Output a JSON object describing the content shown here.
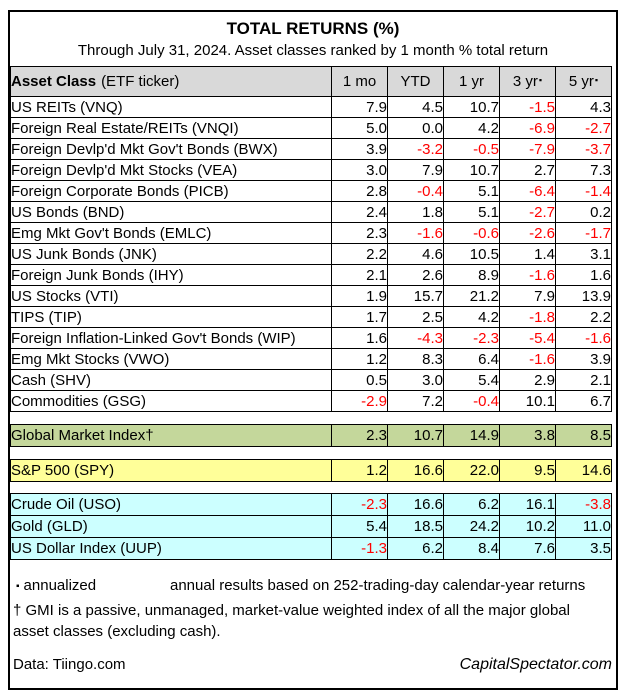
{
  "title": "TOTAL RETURNS (%)",
  "subtitle": "Through July 31, 2024. Asset classes ranked by 1 month % total return",
  "colors": {
    "header_gray": "#d9d9d9",
    "gmi_green": "#c4d79b",
    "sp_yellow": "#ffff99",
    "alt_cyan": "#ccffff",
    "negative_red": "#ff0000"
  },
  "header": {
    "asset_class_bold": "Asset Class",
    "asset_class_normal": "(ETF ticker)"
  },
  "chart_data": {
    "type": "table",
    "title": "TOTAL RETURNS (%)",
    "subtitle": "Through July 31, 2024. Asset classes ranked by 1 month % total return",
    "columns": [
      "Asset Class (ETF ticker)",
      "1 mo",
      "YTD",
      "1 yr",
      "3 yr",
      "5 yr"
    ],
    "annualized_columns": [
      "3 yr",
      "5 yr"
    ],
    "rows": [
      {
        "name": "US REITs (VNQ)",
        "values": [
          "7.9",
          "4.5",
          "10.7",
          "-1.5",
          "4.3"
        ]
      },
      {
        "name": "Foreign Real Estate/REITs (VNQI)",
        "values": [
          "5.0",
          "0.0",
          "4.2",
          "-6.9",
          "-2.7"
        ]
      },
      {
        "name": "Foreign Devlp'd Mkt Gov't Bonds (BWX)",
        "values": [
          "3.9",
          "-3.2",
          "-0.5",
          "-7.9",
          "-3.7"
        ]
      },
      {
        "name": "Foreign Devlp'd Mkt Stocks (VEA)",
        "values": [
          "3.0",
          "7.9",
          "10.7",
          "2.7",
          "7.3"
        ]
      },
      {
        "name": "Foreign Corporate Bonds (PICB)",
        "values": [
          "2.8",
          "-0.4",
          "5.1",
          "-6.4",
          "-1.4"
        ]
      },
      {
        "name": "US Bonds (BND)",
        "values": [
          "2.4",
          "1.8",
          "5.1",
          "-2.7",
          "0.2"
        ]
      },
      {
        "name": "Emg Mkt Gov't Bonds (EMLC)",
        "values": [
          "2.3",
          "-1.6",
          "-0.6",
          "-2.6",
          "-1.7"
        ]
      },
      {
        "name": "US Junk Bonds (JNK)",
        "values": [
          "2.2",
          "4.6",
          "10.5",
          "1.4",
          "3.1"
        ]
      },
      {
        "name": "Foreign Junk Bonds (IHY)",
        "values": [
          "2.1",
          "2.6",
          "8.9",
          "-1.6",
          "1.6"
        ]
      },
      {
        "name": "US Stocks (VTI)",
        "values": [
          "1.9",
          "15.7",
          "21.2",
          "7.9",
          "13.9"
        ]
      },
      {
        "name": "TIPS (TIP)",
        "values": [
          "1.7",
          "2.5",
          "4.2",
          "-1.8",
          "2.2"
        ]
      },
      {
        "name": "Foreign Inflation-Linked Gov't Bonds (WIP)",
        "values": [
          "1.6",
          "-4.3",
          "-2.3",
          "-5.4",
          "-1.6"
        ]
      },
      {
        "name": "Emg Mkt Stocks (VWO)",
        "values": [
          "1.2",
          "8.3",
          "6.4",
          "-1.6",
          "3.9"
        ]
      },
      {
        "name": "Cash (SHV)",
        "values": [
          "0.5",
          "3.0",
          "5.4",
          "2.9",
          "2.1"
        ]
      },
      {
        "name": "Commodities (GSG)",
        "values": [
          "-2.9",
          "7.2",
          "-0.4",
          "10.1",
          "6.7"
        ]
      }
    ],
    "gmi": [
      {
        "name": "Global Market Index†",
        "values": [
          "2.3",
          "10.7",
          "14.9",
          "3.8",
          "8.5"
        ]
      }
    ],
    "sp500": [
      {
        "name": "S&P 500 (SPY)",
        "values": [
          "1.2",
          "16.6",
          "22.0",
          "9.5",
          "14.6"
        ]
      }
    ],
    "alternatives": [
      {
        "name": "Crude Oil (USO)",
        "values": [
          "-2.3",
          "16.6",
          "6.2",
          "16.1",
          "-3.8"
        ]
      },
      {
        "name": "Gold (GLD)",
        "values": [
          "5.4",
          "18.5",
          "24.2",
          "10.2",
          "11.0"
        ]
      },
      {
        "name": "US Dollar Index (UUP)",
        "values": [
          "-1.3",
          "6.2",
          "8.4",
          "7.6",
          "3.5"
        ]
      }
    ]
  },
  "footnotes": {
    "annualized_bullet": "▪",
    "annualized_label": "annualized",
    "annualized_note": "annual results based on 252-trading-day calendar-year returns",
    "gmi_note": "† GMI is a passive, unmanaged, market-value weighted index of all the major global asset classes (excluding cash)."
  },
  "footer": {
    "data_source": "Data: Tiingo.com",
    "site": "CapitalSpectator.com"
  }
}
